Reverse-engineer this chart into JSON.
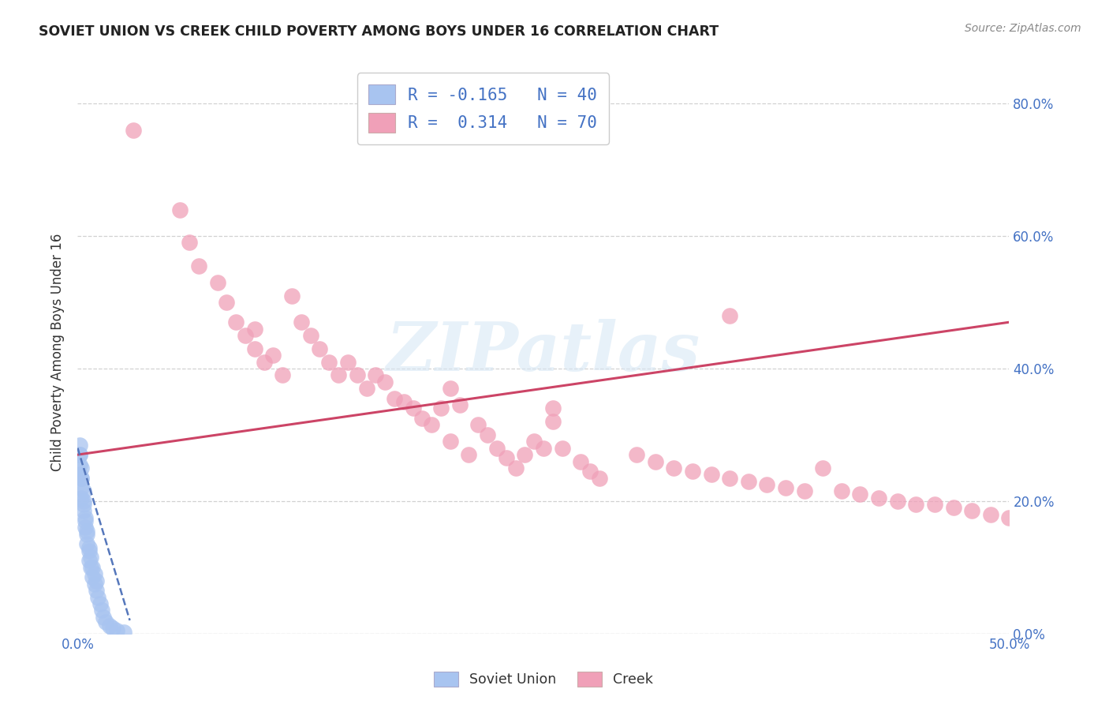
{
  "title": "SOVIET UNION VS CREEK CHILD POVERTY AMONG BOYS UNDER 16 CORRELATION CHART",
  "source": "Source: ZipAtlas.com",
  "ylabel": "Child Poverty Among Boys Under 16",
  "watermark_text": "ZIPatlas",
  "background_color": "#ffffff",
  "soviet_R": -0.165,
  "soviet_N": 40,
  "creek_R": 0.314,
  "creek_N": 70,
  "xlim": [
    0.0,
    0.5
  ],
  "ylim": [
    0.0,
    0.85
  ],
  "yticks": [
    0.0,
    0.2,
    0.4,
    0.6,
    0.8
  ],
  "ytick_labels": [
    "0.0%",
    "20.0%",
    "40.0%",
    "60.0%",
    "80.0%"
  ],
  "soviet_color": "#a8c4f0",
  "soviet_edge_color": "#7aa8e8",
  "creek_color": "#f0a0b8",
  "creek_edge_color": "#e87898",
  "soviet_line_color": "#5577bb",
  "creek_line_color": "#cc4466",
  "creek_x": [
    0.03,
    0.055,
    0.06,
    0.065,
    0.075,
    0.08,
    0.085,
    0.09,
    0.095,
    0.095,
    0.1,
    0.105,
    0.11,
    0.115,
    0.12,
    0.125,
    0.13,
    0.135,
    0.14,
    0.145,
    0.15,
    0.155,
    0.16,
    0.165,
    0.17,
    0.175,
    0.18,
    0.185,
    0.19,
    0.195,
    0.2,
    0.2,
    0.205,
    0.21,
    0.215,
    0.22,
    0.225,
    0.23,
    0.235,
    0.24,
    0.245,
    0.25,
    0.255,
    0.255,
    0.26,
    0.27,
    0.275,
    0.28,
    0.3,
    0.31,
    0.32,
    0.33,
    0.34,
    0.35,
    0.36,
    0.37,
    0.38,
    0.39,
    0.4,
    0.41,
    0.42,
    0.43,
    0.44,
    0.45,
    0.46,
    0.47,
    0.48,
    0.49,
    0.5,
    0.35
  ],
  "creek_y": [
    0.76,
    0.64,
    0.59,
    0.555,
    0.53,
    0.5,
    0.47,
    0.45,
    0.46,
    0.43,
    0.41,
    0.42,
    0.39,
    0.51,
    0.47,
    0.45,
    0.43,
    0.41,
    0.39,
    0.41,
    0.39,
    0.37,
    0.39,
    0.38,
    0.355,
    0.35,
    0.34,
    0.325,
    0.315,
    0.34,
    0.37,
    0.29,
    0.345,
    0.27,
    0.315,
    0.3,
    0.28,
    0.265,
    0.25,
    0.27,
    0.29,
    0.28,
    0.34,
    0.32,
    0.28,
    0.26,
    0.245,
    0.235,
    0.27,
    0.26,
    0.25,
    0.245,
    0.24,
    0.235,
    0.23,
    0.225,
    0.22,
    0.215,
    0.25,
    0.215,
    0.21,
    0.205,
    0.2,
    0.195,
    0.195,
    0.19,
    0.185,
    0.18,
    0.175,
    0.48
  ],
  "soviet_x": [
    0.001,
    0.001,
    0.001,
    0.001,
    0.001,
    0.002,
    0.002,
    0.002,
    0.002,
    0.002,
    0.003,
    0.003,
    0.003,
    0.003,
    0.004,
    0.004,
    0.004,
    0.005,
    0.005,
    0.005,
    0.006,
    0.006,
    0.006,
    0.007,
    0.007,
    0.008,
    0.008,
    0.009,
    0.009,
    0.01,
    0.01,
    0.011,
    0.012,
    0.013,
    0.014,
    0.015,
    0.017,
    0.019,
    0.021,
    0.025
  ],
  "soviet_y": [
    0.285,
    0.27,
    0.255,
    0.24,
    0.27,
    0.25,
    0.235,
    0.22,
    0.205,
    0.235,
    0.215,
    0.2,
    0.185,
    0.195,
    0.175,
    0.16,
    0.17,
    0.15,
    0.135,
    0.155,
    0.125,
    0.11,
    0.13,
    0.1,
    0.115,
    0.085,
    0.1,
    0.075,
    0.09,
    0.065,
    0.08,
    0.055,
    0.045,
    0.035,
    0.025,
    0.018,
    0.012,
    0.008,
    0.004,
    0.002
  ]
}
